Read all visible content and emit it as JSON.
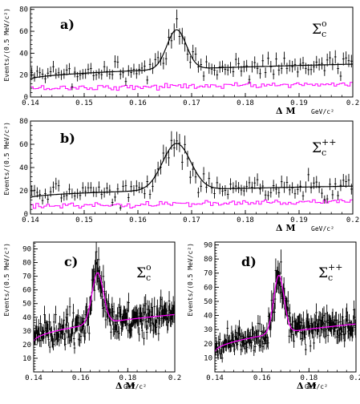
{
  "colors": {
    "data": "#000000",
    "fit": "#000000",
    "background": "#ff00ff",
    "frame": "#000000"
  },
  "chart_data": [
    {
      "id": "a",
      "type": "histogram",
      "panel_label": "a)",
      "particle": {
        "symbol": "Σ",
        "sub": "c",
        "sup": "o"
      },
      "ylabel": "Events/(0.5 MeV/c²)",
      "xlabel": "Δ M",
      "xunit": "GeV/c²",
      "xlim": [
        0.14,
        0.2
      ],
      "ylim": [
        0,
        82
      ],
      "xticks": [
        0.14,
        0.15,
        0.16,
        0.17,
        0.18,
        0.19,
        0.2
      ],
      "xtick_labels": [
        "0.14",
        "0.15",
        "0.16",
        "0.17",
        "0.18",
        "0.19",
        "0.2"
      ],
      "yticks": [
        0,
        20,
        40,
        60,
        80
      ],
      "ytick_labels": [
        "0",
        "20",
        "40",
        "60",
        "80"
      ],
      "series": [
        {
          "role": "data",
          "style": "points-with-errors",
          "color": "black"
        },
        {
          "role": "fit",
          "style": "line",
          "color": "black"
        },
        {
          "role": "background",
          "style": "step",
          "color": "magenta"
        }
      ],
      "model": {
        "n": 120,
        "bkg_start": 16,
        "bkg_end": 30,
        "bkg_shape": "threshold",
        "peak_mean": 0.1672,
        "peak_amp": 36,
        "peak_sigma": 0.0018,
        "sideband_start": 8,
        "sideband_end": 12
      }
    },
    {
      "id": "b",
      "type": "histogram",
      "panel_label": "b)",
      "particle": {
        "symbol": "Σ",
        "sub": "c",
        "sup": "++"
      },
      "ylabel": "Events/(0.5 MeV/c²)",
      "xlabel": "Δ M",
      "xunit": "GeV/c²",
      "xlim": [
        0.14,
        0.2
      ],
      "ylim": [
        0,
        80
      ],
      "xticks": [
        0.14,
        0.15,
        0.16,
        0.17,
        0.18,
        0.19,
        0.2
      ],
      "xtick_labels": [
        "0.14",
        "0.15",
        "0.16",
        "0.17",
        "0.18",
        "0.19",
        "0.2"
      ],
      "yticks": [
        0,
        20,
        40,
        60,
        80
      ],
      "ytick_labels": [
        "0",
        "20",
        "40",
        "60",
        "80"
      ],
      "series": [
        {
          "role": "data",
          "style": "points-with-errors",
          "color": "black"
        },
        {
          "role": "fit",
          "style": "line",
          "color": "black"
        },
        {
          "role": "background",
          "style": "step",
          "color": "magenta"
        }
      ],
      "model": {
        "n": 120,
        "bkg_start": 14,
        "bkg_end": 24,
        "bkg_shape": "threshold",
        "peak_mean": 0.1672,
        "peak_amp": 40,
        "peak_sigma": 0.0026,
        "sideband_start": 7,
        "sideband_end": 11
      }
    },
    {
      "id": "c",
      "type": "histogram",
      "panel_label": "c)",
      "particle": {
        "symbol": "Σ",
        "sub": "c",
        "sup": "o"
      },
      "ylabel": "Events/(0.5 MeV/c²)",
      "xlabel": "Δ M",
      "xunit": "GeV/c²",
      "xlim": [
        0.14,
        0.2
      ],
      "ylim": [
        0,
        95
      ],
      "xticks": [
        0.14,
        0.16,
        0.18,
        0.2
      ],
      "xtick_labels": [
        "0.14",
        "0.16",
        "0.18",
        "0.2"
      ],
      "yticks": [
        10,
        20,
        30,
        40,
        50,
        60,
        70,
        80,
        90
      ],
      "ytick_labels": [
        "10",
        "20",
        "30",
        "40",
        "50",
        "60",
        "70",
        "80",
        "90"
      ],
      "series": [
        {
          "role": "data",
          "style": "points-with-errors",
          "color": "black"
        },
        {
          "role": "fit",
          "style": "line",
          "color": "magenta"
        }
      ],
      "model": {
        "n": 240,
        "bkg_start": 22,
        "bkg_end": 42,
        "bkg_shape": "threshold",
        "peak_mean": 0.1672,
        "peak_amp": 37,
        "peak_sigma": 0.0024
      }
    },
    {
      "id": "d",
      "type": "histogram",
      "panel_label": "d)",
      "particle": {
        "symbol": "Σ",
        "sub": "c",
        "sup": "++"
      },
      "ylabel": "Events/(0.5 MeV/c²)",
      "xlabel": "Δ M",
      "xunit": "GeV/c²",
      "xlim": [
        0.14,
        0.2
      ],
      "ylim": [
        0,
        92
      ],
      "xticks": [
        0.14,
        0.16,
        0.18,
        0.2
      ],
      "xtick_labels": [
        "0.14",
        "0.16",
        "0.18",
        "0.2"
      ],
      "yticks": [
        10,
        20,
        30,
        40,
        50,
        60,
        70,
        80,
        90
      ],
      "ytick_labels": [
        "10",
        "20",
        "30",
        "40",
        "50",
        "60",
        "70",
        "80",
        "90"
      ],
      "series": [
        {
          "role": "data",
          "style": "points-with-errors",
          "color": "black"
        },
        {
          "role": "fit",
          "style": "line",
          "color": "magenta"
        }
      ],
      "model": {
        "n": 240,
        "bkg_start": 14,
        "bkg_end": 34,
        "bkg_shape": "threshold",
        "peak_mean": 0.1672,
        "peak_amp": 41,
        "peak_sigma": 0.0022
      }
    }
  ]
}
